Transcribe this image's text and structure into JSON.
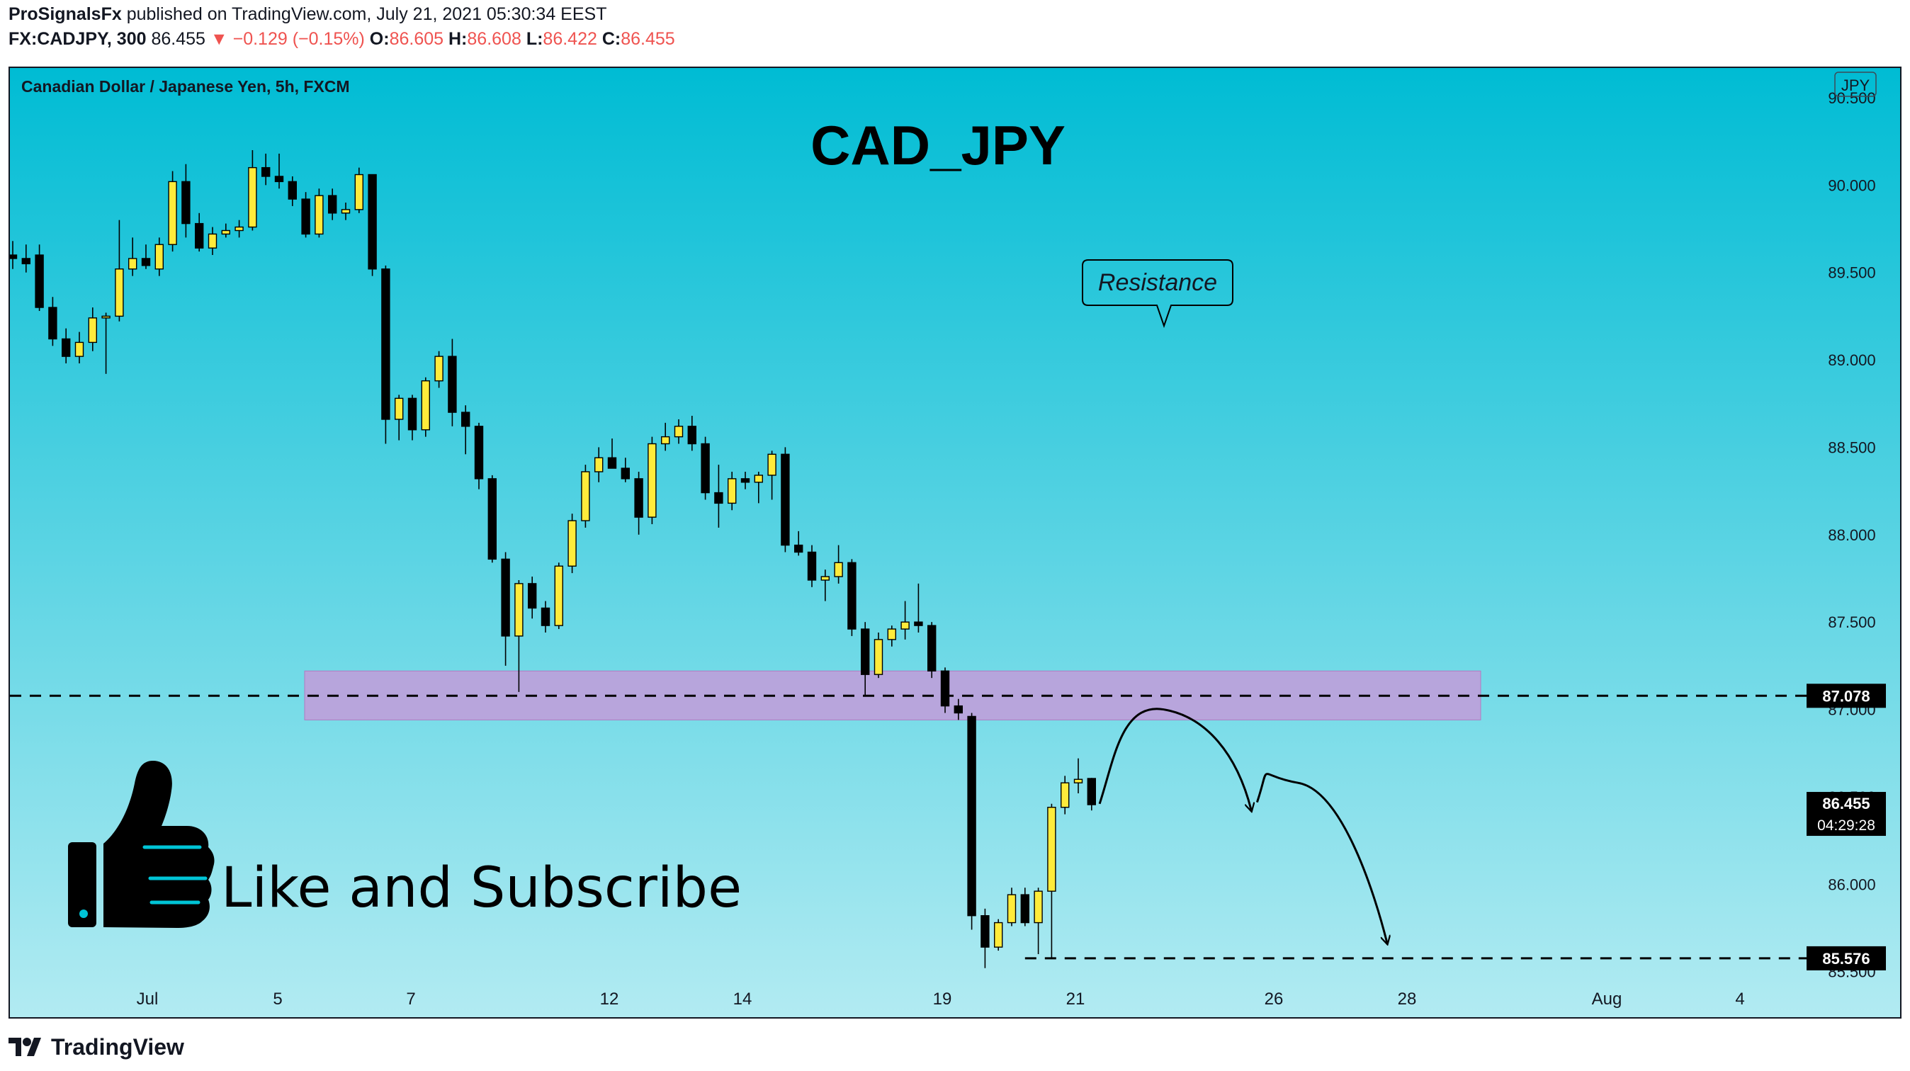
{
  "header": {
    "publisher": "ProSignalsFx",
    "published_text": "published on TradingView.com, July 21, 2021 05:30:34 EEST",
    "symbol": "FX:CADJPY, 300",
    "price": "86.455",
    "change": "▼ −0.129 (−0.15%)",
    "o_label": "O:",
    "o_value": "86.605",
    "h_label": "H:",
    "h_value": "86.608",
    "l_label": "L:",
    "l_value": "86.422",
    "c_label": "C:",
    "c_value": "86.455"
  },
  "footer": {
    "brand": "TradingView",
    "logo_icon": "tradingview-logo-icon"
  },
  "colors": {
    "bg_top": "#00BCD4",
    "bg_bottom": "#B2EBF2",
    "bull": "#FFEB3B",
    "bear": "#000000",
    "zone": "#CE93D8",
    "down_red": "#EF5350"
  },
  "chart_data": {
    "type": "candlestick",
    "instrument_label": "Canadian Dollar / Japanese Yen, 5h, FXCM",
    "title": "CAD_JPY",
    "currency_badge": "JPY",
    "y_ticks": [
      "90.500",
      "90.000",
      "89.500",
      "89.000",
      "88.500",
      "88.000",
      "87.500",
      "87.000",
      "86.500",
      "86.000",
      "85.500"
    ],
    "ylim": [
      85.45,
      90.67
    ],
    "x_ticks": [
      "Jul",
      "5",
      "7",
      "12",
      "14",
      "19",
      "21",
      "26",
      "28",
      "Aug",
      "4"
    ],
    "candles": [
      {
        "o": 89.6,
        "h": 89.68,
        "l": 89.52,
        "c": 89.58
      },
      {
        "o": 89.58,
        "h": 89.66,
        "l": 89.5,
        "c": 89.55
      },
      {
        "o": 89.6,
        "h": 89.66,
        "l": 89.28,
        "c": 89.3
      },
      {
        "o": 89.3,
        "h": 89.36,
        "l": 89.08,
        "c": 89.12
      },
      {
        "o": 89.12,
        "h": 89.18,
        "l": 88.98,
        "c": 89.02
      },
      {
        "o": 89.02,
        "h": 89.16,
        "l": 88.98,
        "c": 89.1
      },
      {
        "o": 89.1,
        "h": 89.3,
        "l": 89.05,
        "c": 89.24
      },
      {
        "o": 89.24,
        "h": 89.27,
        "l": 88.92,
        "c": 89.25
      },
      {
        "o": 89.25,
        "h": 89.8,
        "l": 89.22,
        "c": 89.52
      },
      {
        "o": 89.52,
        "h": 89.7,
        "l": 89.48,
        "c": 89.58
      },
      {
        "o": 89.58,
        "h": 89.66,
        "l": 89.52,
        "c": 89.54
      },
      {
        "o": 89.52,
        "h": 89.7,
        "l": 89.48,
        "c": 89.66
      },
      {
        "o": 89.66,
        "h": 90.08,
        "l": 89.62,
        "c": 90.02
      },
      {
        "o": 90.02,
        "h": 90.12,
        "l": 89.7,
        "c": 89.78
      },
      {
        "o": 89.78,
        "h": 89.84,
        "l": 89.62,
        "c": 89.64
      },
      {
        "o": 89.64,
        "h": 89.76,
        "l": 89.6,
        "c": 89.72
      },
      {
        "o": 89.72,
        "h": 89.78,
        "l": 89.7,
        "c": 89.74
      },
      {
        "o": 89.74,
        "h": 89.8,
        "l": 89.7,
        "c": 89.76
      },
      {
        "o": 89.76,
        "h": 90.2,
        "l": 89.74,
        "c": 90.1
      },
      {
        "o": 90.1,
        "h": 90.18,
        "l": 90.0,
        "c": 90.05
      },
      {
        "o": 90.05,
        "h": 90.18,
        "l": 89.98,
        "c": 90.02
      },
      {
        "o": 90.02,
        "h": 90.05,
        "l": 89.88,
        "c": 89.92
      },
      {
        "o": 89.92,
        "h": 89.96,
        "l": 89.7,
        "c": 89.72
      },
      {
        "o": 89.72,
        "h": 89.98,
        "l": 89.7,
        "c": 89.94
      },
      {
        "o": 89.94,
        "h": 89.98,
        "l": 89.8,
        "c": 89.84
      },
      {
        "o": 89.84,
        "h": 89.9,
        "l": 89.8,
        "c": 89.86
      },
      {
        "o": 89.86,
        "h": 90.1,
        "l": 89.84,
        "c": 90.06
      },
      {
        "o": 90.06,
        "h": 90.06,
        "l": 89.48,
        "c": 89.52
      },
      {
        "o": 89.52,
        "h": 89.54,
        "l": 88.52,
        "c": 88.66
      },
      {
        "o": 88.66,
        "h": 88.8,
        "l": 88.54,
        "c": 88.78
      },
      {
        "o": 88.78,
        "h": 88.8,
        "l": 88.54,
        "c": 88.6
      },
      {
        "o": 88.6,
        "h": 88.9,
        "l": 88.56,
        "c": 88.88
      },
      {
        "o": 88.88,
        "h": 89.05,
        "l": 88.84,
        "c": 89.02
      },
      {
        "o": 89.02,
        "h": 89.12,
        "l": 88.62,
        "c": 88.7
      },
      {
        "o": 88.7,
        "h": 88.74,
        "l": 88.46,
        "c": 88.62
      },
      {
        "o": 88.62,
        "h": 88.64,
        "l": 88.26,
        "c": 88.32
      },
      {
        "o": 88.32,
        "h": 88.34,
        "l": 87.84,
        "c": 87.86
      },
      {
        "o": 87.86,
        "h": 87.9,
        "l": 87.25,
        "c": 87.42
      },
      {
        "o": 87.42,
        "h": 87.74,
        "l": 87.1,
        "c": 87.72
      },
      {
        "o": 87.72,
        "h": 87.76,
        "l": 87.52,
        "c": 87.58
      },
      {
        "o": 87.58,
        "h": 87.62,
        "l": 87.44,
        "c": 87.48
      },
      {
        "o": 87.48,
        "h": 87.84,
        "l": 87.46,
        "c": 87.82
      },
      {
        "o": 87.82,
        "h": 88.12,
        "l": 87.78,
        "c": 88.08
      },
      {
        "o": 88.08,
        "h": 88.4,
        "l": 88.04,
        "c": 88.36
      },
      {
        "o": 88.36,
        "h": 88.5,
        "l": 88.3,
        "c": 88.44
      },
      {
        "o": 88.44,
        "h": 88.55,
        "l": 88.4,
        "c": 88.38
      },
      {
        "o": 88.38,
        "h": 88.44,
        "l": 88.3,
        "c": 88.32
      },
      {
        "o": 88.32,
        "h": 88.36,
        "l": 88.0,
        "c": 88.1
      },
      {
        "o": 88.1,
        "h": 88.56,
        "l": 88.06,
        "c": 88.52
      },
      {
        "o": 88.52,
        "h": 88.64,
        "l": 88.48,
        "c": 88.56
      },
      {
        "o": 88.56,
        "h": 88.66,
        "l": 88.52,
        "c": 88.62
      },
      {
        "o": 88.62,
        "h": 88.68,
        "l": 88.48,
        "c": 88.52
      },
      {
        "o": 88.52,
        "h": 88.56,
        "l": 88.2,
        "c": 88.24
      },
      {
        "o": 88.24,
        "h": 88.4,
        "l": 88.04,
        "c": 88.18
      },
      {
        "o": 88.18,
        "h": 88.36,
        "l": 88.14,
        "c": 88.32
      },
      {
        "o": 88.32,
        "h": 88.36,
        "l": 88.26,
        "c": 88.3
      },
      {
        "o": 88.3,
        "h": 88.36,
        "l": 88.18,
        "c": 88.34
      },
      {
        "o": 88.34,
        "h": 88.48,
        "l": 88.2,
        "c": 88.46
      },
      {
        "o": 88.46,
        "h": 88.5,
        "l": 87.9,
        "c": 87.94
      },
      {
        "o": 87.94,
        "h": 88.02,
        "l": 87.88,
        "c": 87.9
      },
      {
        "o": 87.9,
        "h": 87.94,
        "l": 87.7,
        "c": 87.74
      },
      {
        "o": 87.74,
        "h": 87.8,
        "l": 87.62,
        "c": 87.76
      },
      {
        "o": 87.76,
        "h": 87.94,
        "l": 87.72,
        "c": 87.84
      },
      {
        "o": 87.84,
        "h": 87.86,
        "l": 87.42,
        "c": 87.46
      },
      {
        "o": 87.46,
        "h": 87.5,
        "l": 87.08,
        "c": 87.2
      },
      {
        "o": 87.2,
        "h": 87.44,
        "l": 87.18,
        "c": 87.4
      },
      {
        "o": 87.4,
        "h": 87.48,
        "l": 87.36,
        "c": 87.46
      },
      {
        "o": 87.46,
        "h": 87.62,
        "l": 87.4,
        "c": 87.5
      },
      {
        "o": 87.5,
        "h": 87.72,
        "l": 87.44,
        "c": 87.48
      },
      {
        "o": 87.48,
        "h": 87.5,
        "l": 87.18,
        "c": 87.22
      },
      {
        "o": 87.22,
        "h": 87.24,
        "l": 86.98,
        "c": 87.02
      },
      {
        "o": 87.02,
        "h": 87.06,
        "l": 86.94,
        "c": 86.98
      },
      {
        "o": 86.96,
        "h": 86.98,
        "l": 85.74,
        "c": 85.82
      },
      {
        "o": 85.82,
        "h": 85.86,
        "l": 85.52,
        "c": 85.64
      },
      {
        "o": 85.64,
        "h": 85.8,
        "l": 85.62,
        "c": 85.78
      },
      {
        "o": 85.78,
        "h": 85.98,
        "l": 85.76,
        "c": 85.94
      },
      {
        "o": 85.94,
        "h": 85.98,
        "l": 85.76,
        "c": 85.78
      },
      {
        "o": 85.78,
        "h": 85.98,
        "l": 85.6,
        "c": 85.96
      },
      {
        "o": 85.96,
        "h": 86.46,
        "l": 85.58,
        "c": 86.44
      },
      {
        "o": 86.44,
        "h": 86.62,
        "l": 86.4,
        "c": 86.58
      },
      {
        "o": 86.58,
        "h": 86.72,
        "l": 86.52,
        "c": 86.6
      },
      {
        "o": 86.605,
        "h": 86.608,
        "l": 86.422,
        "c": 86.455
      }
    ],
    "resistance_zone": {
      "low": 86.94,
      "high": 87.22,
      "label": "Resistance"
    },
    "levels": [
      {
        "value": 87.078,
        "label": "87.078"
      },
      {
        "value": 85.576,
        "label": "85.576"
      }
    ],
    "last_price": {
      "value": 86.455,
      "label": "86.455",
      "countdown": "04:29:28"
    },
    "projection_path": [
      {
        "bar": 81.6,
        "y": 86.46
      },
      {
        "bar": 86.4,
        "y": 87.0
      },
      {
        "bar": 93.0,
        "y": 86.42
      },
      {
        "bar": 96.5,
        "y": 86.58
      },
      {
        "bar": 103.2,
        "y": 85.66
      }
    ],
    "cta_text": "Like and Subscribe",
    "cta_icon": "thumbs-up-icon"
  }
}
